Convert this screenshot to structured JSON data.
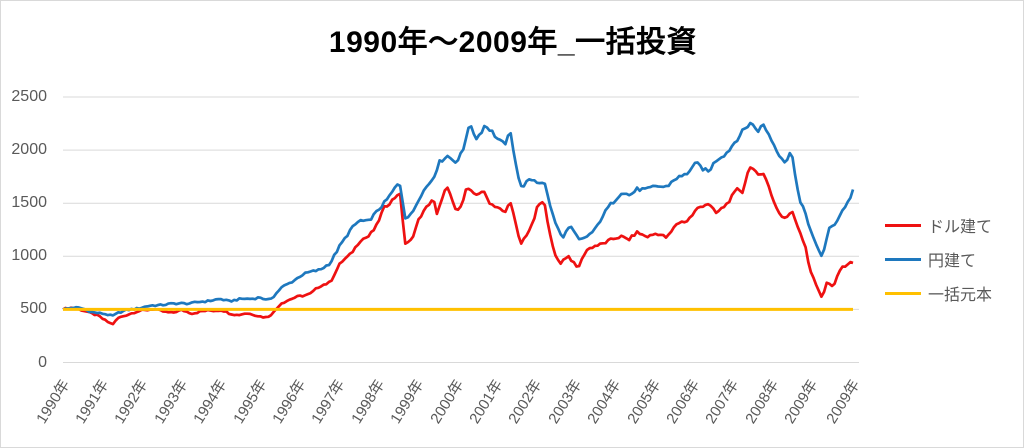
{
  "chart_data": {
    "type": "line",
    "title": "1990年〜2009年_一括投資",
    "legend_position": "right",
    "grid": true,
    "x_axis": {
      "labels": [
        "1990年",
        "1991年",
        "1992年",
        "1993年",
        "1994年",
        "1995年",
        "1996年",
        "1997年",
        "1998年",
        "1999年",
        "2000年",
        "2001年",
        "2002年",
        "2003年",
        "2004年",
        "2005年",
        "2006年",
        "2007年",
        "2008年",
        "2009年",
        "2009年"
      ],
      "range_years": [
        1990,
        2010
      ]
    },
    "y_axis": {
      "ticks": [
        0,
        500,
        1000,
        1500,
        2000,
        2500
      ],
      "range": [
        0,
        2500
      ]
    },
    "series": [
      {
        "name": "ドル建て",
        "color": "#ee1111",
        "jitter": 1,
        "keypoints": [
          [
            1990.0,
            500
          ],
          [
            1990.25,
            515
          ],
          [
            1990.5,
            495
          ],
          [
            1990.7,
            460
          ],
          [
            1990.9,
            440
          ],
          [
            1991.1,
            390
          ],
          [
            1991.25,
            355
          ],
          [
            1991.4,
            420
          ],
          [
            1991.6,
            450
          ],
          [
            1991.8,
            470
          ],
          [
            1992.0,
            490
          ],
          [
            1992.25,
            505
          ],
          [
            1992.5,
            480
          ],
          [
            1992.75,
            470
          ],
          [
            1993.0,
            490
          ],
          [
            1993.25,
            465
          ],
          [
            1993.5,
            480
          ],
          [
            1993.75,
            490
          ],
          [
            1994.0,
            495
          ],
          [
            1994.2,
            460
          ],
          [
            1994.4,
            450
          ],
          [
            1994.6,
            462
          ],
          [
            1994.8,
            450
          ],
          [
            1995.0,
            435
          ],
          [
            1995.15,
            425
          ],
          [
            1995.3,
            460
          ],
          [
            1995.5,
            560
          ],
          [
            1995.7,
            590
          ],
          [
            1996.0,
            625
          ],
          [
            1996.25,
            650
          ],
          [
            1996.5,
            720
          ],
          [
            1996.75,
            760
          ],
          [
            1997.0,
            930
          ],
          [
            1997.25,
            1020
          ],
          [
            1997.5,
            1145
          ],
          [
            1997.7,
            1180
          ],
          [
            1997.9,
            1280
          ],
          [
            1998.1,
            1445
          ],
          [
            1998.3,
            1520
          ],
          [
            1998.5,
            1620
          ],
          [
            1998.65,
            1100
          ],
          [
            1998.8,
            1150
          ],
          [
            1999.0,
            1370
          ],
          [
            1999.35,
            1540
          ],
          [
            1999.45,
            1380
          ],
          [
            1999.6,
            1600
          ],
          [
            1999.7,
            1645
          ],
          [
            1999.95,
            1400
          ],
          [
            2000.1,
            1540
          ],
          [
            2000.2,
            1660
          ],
          [
            2000.4,
            1560
          ],
          [
            2000.6,
            1620
          ],
          [
            2000.8,
            1500
          ],
          [
            2001.0,
            1450
          ],
          [
            2001.15,
            1400
          ],
          [
            2001.3,
            1530
          ],
          [
            2001.55,
            1100
          ],
          [
            2001.7,
            1200
          ],
          [
            2001.85,
            1300
          ],
          [
            2002.0,
            1490
          ],
          [
            2002.15,
            1500
          ],
          [
            2002.4,
            1030
          ],
          [
            2002.56,
            937
          ],
          [
            2002.75,
            1003
          ],
          [
            2003.0,
            890
          ],
          [
            2003.2,
            1050
          ],
          [
            2003.45,
            1100
          ],
          [
            2003.8,
            1145
          ],
          [
            2004.1,
            1190
          ],
          [
            2004.3,
            1160
          ],
          [
            2004.5,
            1220
          ],
          [
            2004.75,
            1190
          ],
          [
            2005.0,
            1210
          ],
          [
            2005.25,
            1180
          ],
          [
            2005.5,
            1305
          ],
          [
            2005.75,
            1330
          ],
          [
            2006.0,
            1445
          ],
          [
            2006.3,
            1495
          ],
          [
            2006.5,
            1410
          ],
          [
            2006.75,
            1480
          ],
          [
            2007.05,
            1650
          ],
          [
            2007.15,
            1600
          ],
          [
            2007.35,
            1850
          ],
          [
            2007.55,
            1760
          ],
          [
            2007.7,
            1800
          ],
          [
            2007.9,
            1550
          ],
          [
            2008.1,
            1400
          ],
          [
            2008.25,
            1360
          ],
          [
            2008.4,
            1420
          ],
          [
            2008.6,
            1240
          ],
          [
            2008.75,
            1100
          ],
          [
            2008.85,
            890
          ],
          [
            2009.0,
            740
          ],
          [
            2009.17,
            610
          ],
          [
            2009.3,
            770
          ],
          [
            2009.45,
            700
          ],
          [
            2009.6,
            860
          ],
          [
            2009.8,
            930
          ],
          [
            2009.95,
            950
          ]
        ]
      },
      {
        "name": "円建て",
        "color": "#1e78be",
        "jitter": 1,
        "keypoints": [
          [
            1990.0,
            500
          ],
          [
            1990.25,
            520
          ],
          [
            1990.5,
            505
          ],
          [
            1990.7,
            480
          ],
          [
            1990.9,
            465
          ],
          [
            1991.1,
            450
          ],
          [
            1991.25,
            440
          ],
          [
            1991.4,
            470
          ],
          [
            1991.6,
            490
          ],
          [
            1991.8,
            505
          ],
          [
            1992.0,
            520
          ],
          [
            1992.25,
            535
          ],
          [
            1992.5,
            545
          ],
          [
            1992.75,
            550
          ],
          [
            1993.0,
            560
          ],
          [
            1993.25,
            555
          ],
          [
            1993.5,
            575
          ],
          [
            1993.75,
            585
          ],
          [
            1994.0,
            595
          ],
          [
            1994.2,
            580
          ],
          [
            1994.4,
            590
          ],
          [
            1994.6,
            600
          ],
          [
            1994.8,
            605
          ],
          [
            1995.0,
            610
          ],
          [
            1995.15,
            580
          ],
          [
            1995.3,
            620
          ],
          [
            1995.5,
            700
          ],
          [
            1995.7,
            740
          ],
          [
            1996.0,
            820
          ],
          [
            1996.25,
            850
          ],
          [
            1996.5,
            880
          ],
          [
            1996.75,
            930
          ],
          [
            1997.0,
            1110
          ],
          [
            1997.25,
            1240
          ],
          [
            1997.5,
            1340
          ],
          [
            1997.7,
            1330
          ],
          [
            1997.9,
            1400
          ],
          [
            1998.1,
            1500
          ],
          [
            1998.3,
            1600
          ],
          [
            1998.5,
            1690
          ],
          [
            1998.65,
            1360
          ],
          [
            1998.8,
            1400
          ],
          [
            1999.0,
            1550
          ],
          [
            1999.35,
            1750
          ],
          [
            1999.5,
            1880
          ],
          [
            1999.7,
            1940
          ],
          [
            1999.95,
            1900
          ],
          [
            2000.1,
            1990
          ],
          [
            2000.25,
            2230
          ],
          [
            2000.45,
            2120
          ],
          [
            2000.65,
            2230
          ],
          [
            2000.8,
            2180
          ],
          [
            2001.0,
            2100
          ],
          [
            2001.15,
            2060
          ],
          [
            2001.3,
            2150
          ],
          [
            2001.55,
            1650
          ],
          [
            2001.7,
            1700
          ],
          [
            2001.85,
            1720
          ],
          [
            2002.0,
            1690
          ],
          [
            2002.15,
            1710
          ],
          [
            2002.4,
            1340
          ],
          [
            2002.6,
            1170
          ],
          [
            2002.8,
            1290
          ],
          [
            2003.05,
            1140
          ],
          [
            2003.2,
            1180
          ],
          [
            2003.45,
            1260
          ],
          [
            2003.8,
            1480
          ],
          [
            2004.1,
            1600
          ],
          [
            2004.3,
            1570
          ],
          [
            2004.5,
            1640
          ],
          [
            2004.75,
            1620
          ],
          [
            2005.0,
            1670
          ],
          [
            2005.25,
            1650
          ],
          [
            2005.5,
            1740
          ],
          [
            2005.75,
            1780
          ],
          [
            2006.0,
            1870
          ],
          [
            2006.3,
            1800
          ],
          [
            2006.5,
            1900
          ],
          [
            2006.75,
            1980
          ],
          [
            2007.05,
            2110
          ],
          [
            2007.35,
            2270
          ],
          [
            2007.55,
            2180
          ],
          [
            2007.7,
            2230
          ],
          [
            2007.9,
            2100
          ],
          [
            2008.1,
            1950
          ],
          [
            2008.25,
            1870
          ],
          [
            2008.4,
            2000
          ],
          [
            2008.6,
            1520
          ],
          [
            2008.75,
            1400
          ],
          [
            2008.85,
            1270
          ],
          [
            2009.0,
            1120
          ],
          [
            2009.17,
            1000
          ],
          [
            2009.35,
            1250
          ],
          [
            2009.5,
            1310
          ],
          [
            2009.7,
            1450
          ],
          [
            2009.85,
            1520
          ],
          [
            2009.95,
            1620
          ]
        ]
      },
      {
        "name": "一括元本",
        "color": "#ffc000",
        "jitter": 0,
        "keypoints": [
          [
            1990.0,
            500
          ],
          [
            2009.95,
            500
          ]
        ]
      }
    ]
  },
  "colors": {
    "grid": "#d9d9d9",
    "axis_text": "#595959",
    "title_text": "#000000",
    "background": "#ffffff",
    "border": "#d9d9d9"
  }
}
